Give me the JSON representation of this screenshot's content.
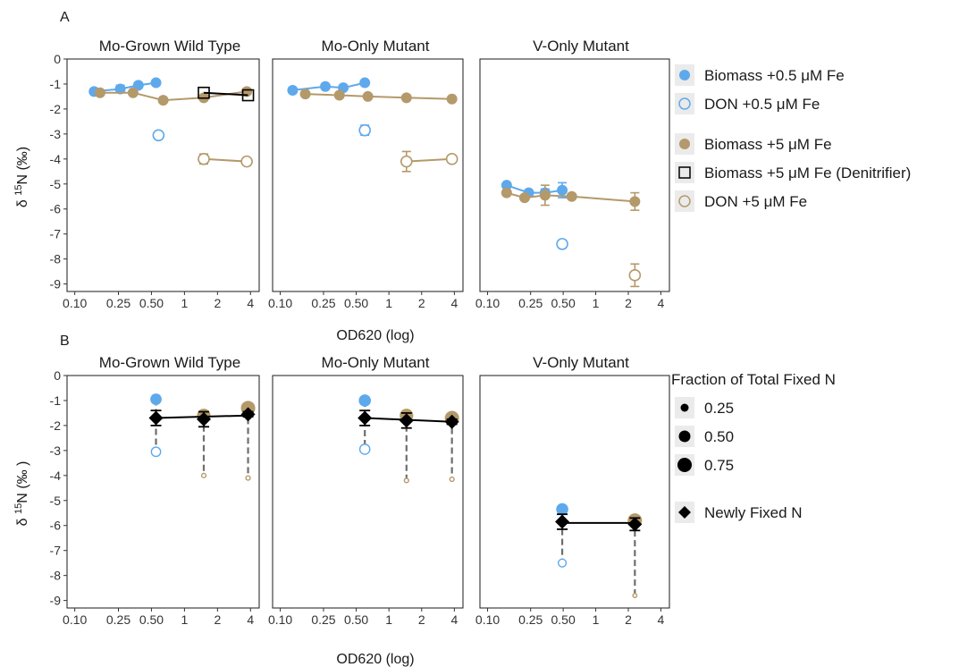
{
  "figure": {
    "panel_a_letter": "A",
    "panel_b_letter": "B",
    "x_axis_label": "OD620 (log)",
    "panel_a_y_label_prefix": "δ ",
    "panel_a_y_label_sup": "15",
    "panel_a_y_label_suffix": "N (‰)",
    "panel_b_y_label_prefix": "δ ",
    "panel_b_y_label_sup": "15",
    "panel_b_y_label_suffix": "N (‰ )",
    "colors": {
      "blue": "#5ea9ec",
      "tan": "#b4996a",
      "black": "#000000",
      "gray": "#6e6e6e"
    }
  },
  "legend_a": {
    "items": [
      {
        "label": "Biomass +0.5 μM Fe",
        "symbol": "filled-circle",
        "color": "#5ea9ec"
      },
      {
        "label": "DON +0.5 μM Fe",
        "symbol": "open-circle",
        "color": "#5ea9ec"
      },
      {
        "label": "Biomass +5 μM Fe",
        "symbol": "filled-circle",
        "color": "#b4996a"
      },
      {
        "label": "Biomass +5 μM Fe (Denitrifier)",
        "symbol": "open-square",
        "color": "#000000"
      },
      {
        "label": "DON +5 μM Fe",
        "symbol": "open-circle",
        "color": "#b4996a"
      }
    ]
  },
  "legend_b": {
    "size_title": "Fraction of Total Fixed N",
    "size_items": [
      {
        "label": "0.25",
        "value": 0.25
      },
      {
        "label": "0.50",
        "value": 0.5
      },
      {
        "label": "0.75",
        "value": 0.75
      }
    ],
    "newly_fixed_label": "Newly Fixed N"
  },
  "chart_data": [
    {
      "panel": "A",
      "type": "scatter",
      "facets": [
        "Mo-Grown Wild Type",
        "Mo-Only Mutant",
        "V-Only Mutant"
      ],
      "x_scale": "log",
      "x_ticks": [
        0.1,
        0.25,
        0.5,
        1,
        2,
        4
      ],
      "x_tick_labels": [
        "0.10",
        "0.25",
        "0.50",
        "1",
        "2",
        "4"
      ],
      "xlabel": "OD620 (log)",
      "ylabel": "δ 15N (‰)",
      "ylim": [
        -9.3,
        0
      ],
      "y_ticks": [
        0,
        -1,
        -2,
        -3,
        -4,
        -5,
        -6,
        -7,
        -8,
        -9
      ],
      "grid": false,
      "legend_position": "right",
      "series": [
        {
          "name": "Biomass +0.5 μM Fe",
          "facet": 0,
          "marker": "filled-circle",
          "color": "#5ea9ec",
          "line": true,
          "points": [
            [
              0.15,
              -1.3,
              0.05
            ],
            [
              0.26,
              -1.2,
              0.15
            ],
            [
              0.38,
              -1.05,
              0.05
            ],
            [
              0.55,
              -0.95,
              0.05
            ]
          ]
        },
        {
          "name": "DON +0.5 μM Fe",
          "facet": 0,
          "marker": "open-circle",
          "color": "#5ea9ec",
          "line": false,
          "points": [
            [
              0.58,
              -3.05,
              0.12
            ]
          ]
        },
        {
          "name": "Biomass +5 μM Fe",
          "facet": 0,
          "marker": "filled-circle",
          "color": "#b4996a",
          "line": true,
          "points": [
            [
              0.17,
              -1.35,
              0.05
            ],
            [
              0.34,
              -1.35,
              0.05
            ],
            [
              0.64,
              -1.65,
              0.05
            ],
            [
              1.5,
              -1.55,
              0.1
            ],
            [
              3.7,
              -1.3,
              0.1
            ]
          ]
        },
        {
          "name": "Biomass +5 μM Fe (Denitrifier)",
          "facet": 0,
          "marker": "open-square",
          "color": "#000000",
          "line": true,
          "points": [
            [
              1.5,
              -1.35,
              0.05
            ],
            [
              3.8,
              -1.45,
              0.05
            ]
          ]
        },
        {
          "name": "DON +5 μM Fe",
          "facet": 0,
          "marker": "open-circle",
          "color": "#b4996a",
          "line": true,
          "points": [
            [
              1.5,
              -4.0,
              0.2
            ],
            [
              3.7,
              -4.1,
              0.05
            ]
          ]
        },
        {
          "name": "Biomass +0.5 μM Fe",
          "facet": 1,
          "marker": "filled-circle",
          "color": "#5ea9ec",
          "line": true,
          "points": [
            [
              0.13,
              -1.25,
              0.05
            ],
            [
              0.26,
              -1.1,
              0.05
            ],
            [
              0.38,
              -1.15,
              0.05
            ],
            [
              0.6,
              -0.95,
              0.05
            ]
          ]
        },
        {
          "name": "DON +0.5 μM Fe",
          "facet": 1,
          "marker": "open-circle",
          "color": "#5ea9ec",
          "line": false,
          "points": [
            [
              0.6,
              -2.85,
              0.2
            ]
          ]
        },
        {
          "name": "Biomass +5 μM Fe",
          "facet": 1,
          "marker": "filled-circle",
          "color": "#b4996a",
          "line": true,
          "points": [
            [
              0.17,
              -1.4,
              0.05
            ],
            [
              0.35,
              -1.45,
              0.05
            ],
            [
              0.64,
              -1.5,
              0.05
            ],
            [
              1.45,
              -1.55,
              0.05
            ],
            [
              3.8,
              -1.6,
              0.05
            ]
          ]
        },
        {
          "name": "DON +5 μM Fe",
          "facet": 1,
          "marker": "open-circle",
          "color": "#b4996a",
          "line": true,
          "points": [
            [
              1.45,
              -4.1,
              0.4
            ],
            [
              3.8,
              -4.0,
              0.05
            ]
          ]
        },
        {
          "name": "Biomass +0.5 μM Fe",
          "facet": 2,
          "marker": "filled-circle",
          "color": "#5ea9ec",
          "line": true,
          "points": [
            [
              0.15,
              -5.05,
              0.05
            ],
            [
              0.24,
              -5.35,
              0.05
            ],
            [
              0.34,
              -5.35,
              0.15
            ],
            [
              0.49,
              -5.25,
              0.3
            ]
          ]
        },
        {
          "name": "DON +0.5 μM Fe",
          "facet": 2,
          "marker": "open-circle",
          "color": "#5ea9ec",
          "line": false,
          "points": [
            [
              0.49,
              -7.4,
              0.15
            ]
          ]
        },
        {
          "name": "Biomass +5 μM Fe",
          "facet": 2,
          "marker": "filled-circle",
          "color": "#b4996a",
          "line": true,
          "points": [
            [
              0.15,
              -5.35,
              0.05
            ],
            [
              0.22,
              -5.55,
              0.05
            ],
            [
              0.34,
              -5.45,
              0.4
            ],
            [
              0.6,
              -5.5,
              0.05
            ],
            [
              2.3,
              -5.7,
              0.35
            ]
          ]
        },
        {
          "name": "DON +5 μM Fe",
          "facet": 2,
          "marker": "open-circle",
          "color": "#b4996a",
          "line": false,
          "points": [
            [
              2.3,
              -8.65,
              0.45
            ]
          ]
        }
      ]
    },
    {
      "panel": "B",
      "type": "scatter",
      "facets": [
        "Mo-Grown Wild Type",
        "Mo-Only Mutant",
        "V-Only Mutant"
      ],
      "x_scale": "log",
      "x_ticks": [
        0.1,
        0.25,
        0.5,
        1,
        2,
        4
      ],
      "x_tick_labels": [
        "0.10",
        "0.25",
        "0.50",
        "1",
        "2",
        "4"
      ],
      "xlabel": "OD620 (log)",
      "ylabel": "δ 15N (‰ )",
      "ylim": [
        -9.3,
        0
      ],
      "y_ticks": [
        0,
        -1,
        -2,
        -3,
        -4,
        -5,
        -6,
        -7,
        -8,
        -9
      ],
      "grid": false,
      "legend_position": "right",
      "groups": [
        {
          "facet": 0,
          "x": 0.55,
          "biomass": -0.95,
          "biomass_frac": 0.55,
          "don": -3.05,
          "don_frac": 0.4,
          "newly": -1.7,
          "newly_err": 0.3,
          "color": "#5ea9ec"
        },
        {
          "facet": 0,
          "x": 1.5,
          "biomass": -1.6,
          "biomass_frac": 0.7,
          "don": -4.0,
          "don_frac": 0.05,
          "newly": -1.75,
          "newly_err": 0.3,
          "color": "#b4996a"
        },
        {
          "facet": 0,
          "x": 3.8,
          "biomass": -1.3,
          "biomass_frac": 0.75,
          "don": -4.1,
          "don_frac": 0.05,
          "newly": -1.55,
          "newly_err": 0.1,
          "color": "#b4996a"
        },
        {
          "facet": 1,
          "x": 0.6,
          "biomass": -1.0,
          "biomass_frac": 0.6,
          "don": -2.95,
          "don_frac": 0.45,
          "newly": -1.7,
          "newly_err": 0.3,
          "color": "#5ea9ec"
        },
        {
          "facet": 1,
          "x": 1.45,
          "biomass": -1.6,
          "biomass_frac": 0.7,
          "don": -4.2,
          "don_frac": 0.05,
          "newly": -1.8,
          "newly_err": 0.3,
          "color": "#b4996a"
        },
        {
          "facet": 1,
          "x": 3.8,
          "biomass": -1.7,
          "biomass_frac": 0.75,
          "don": -4.15,
          "don_frac": 0.05,
          "newly": -1.85,
          "newly_err": 0.1,
          "color": "#b4996a"
        },
        {
          "facet": 2,
          "x": 0.49,
          "biomass": -5.35,
          "biomass_frac": 0.6,
          "don": -7.5,
          "don_frac": 0.3,
          "newly": -5.85,
          "newly_err": 0.3,
          "color": "#5ea9ec"
        },
        {
          "facet": 2,
          "x": 2.3,
          "biomass": -5.8,
          "biomass_frac": 0.75,
          "don": -8.8,
          "don_frac": 0.03,
          "newly": -5.95,
          "newly_err": 0.25,
          "color": "#b4996a"
        }
      ],
      "newly_fixed_lines": [
        {
          "facet": 0,
          "x": [
            0.55,
            3.8
          ],
          "y": [
            -1.7,
            -1.6
          ]
        },
        {
          "facet": 1,
          "x": [
            0.6,
            3.8
          ],
          "y": [
            -1.7,
            -1.85
          ]
        },
        {
          "facet": 2,
          "x": [
            0.49,
            2.3
          ],
          "y": [
            -5.9,
            -5.9
          ]
        }
      ]
    }
  ]
}
